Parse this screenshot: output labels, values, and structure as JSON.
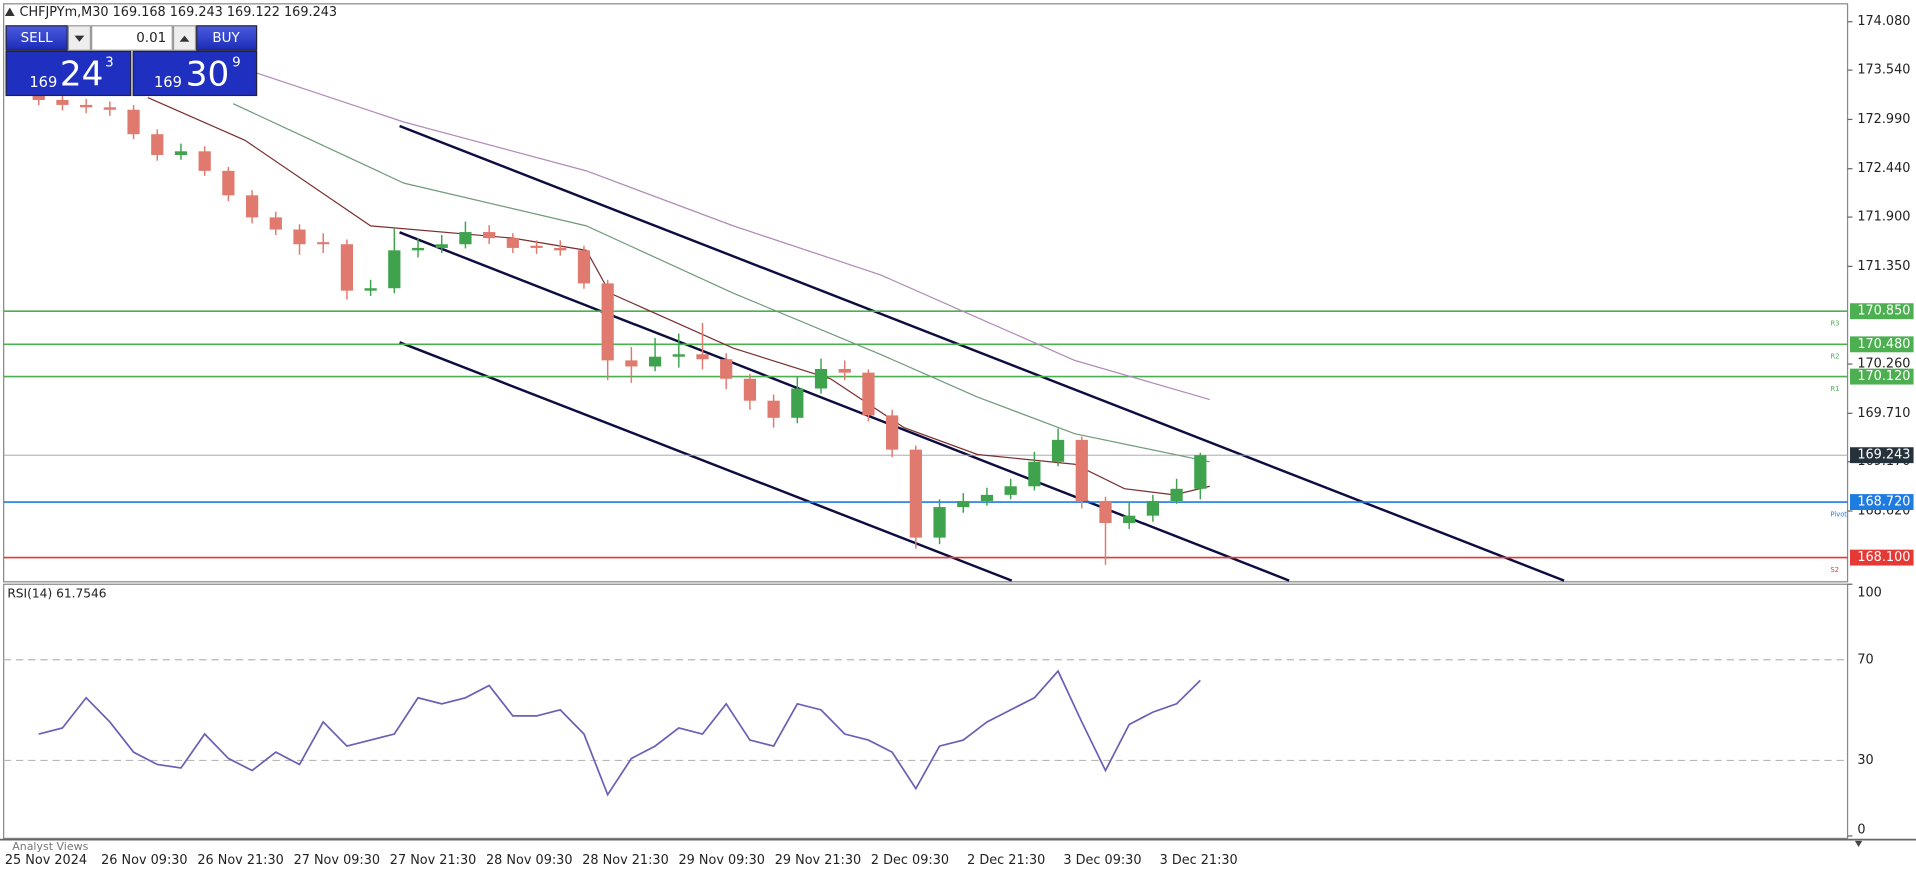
{
  "symbol_header": "CHFJPYm,M30  169.168 169.243 169.122 169.243",
  "trade_panel": {
    "sell": "SELL",
    "buy": "BUY",
    "lot": "0.01",
    "bid_big": "169",
    "bid_pips": "24",
    "bid_frac": "3",
    "ask_big": "169",
    "ask_pips": "30",
    "ask_frac": "9"
  },
  "footer_tab": "Analyst Views",
  "chart_data": [
    {
      "type": "candlestick",
      "x_labels": [
        "25 Nov 2024",
        "26 Nov 09:30",
        "26 Nov 21:30",
        "27 Nov 09:30",
        "27 Nov 21:30",
        "28 Nov 09:30",
        "28 Nov 21:30",
        "29 Nov 09:30",
        "29 Nov 21:30",
        "2 Dec 09:30",
        "2 Dec 21:30",
        "3 Dec 09:30",
        "3 Dec 21:30"
      ],
      "open": [
        173.261,
        173.207,
        173.152,
        173.125,
        173.098,
        172.825,
        172.593,
        172.634,
        172.416,
        172.143,
        171.897,
        171.761,
        171.62,
        171.597,
        171.079,
        171.106,
        171.529,
        171.556,
        171.597,
        171.733,
        171.665,
        171.58,
        171.556,
        171.529,
        171.16,
        170.301,
        170.233,
        170.342,
        170.369,
        170.314,
        170.096,
        169.851,
        169.66,
        169.987,
        170.205,
        170.164,
        169.687,
        169.305,
        168.323,
        168.664,
        168.732,
        168.8,
        168.896,
        169.169,
        169.414,
        168.732,
        168.486,
        168.568,
        168.732,
        168.868
      ],
      "high": [
        173.33,
        173.27,
        173.22,
        173.19,
        173.15,
        172.88,
        172.72,
        172.69,
        172.46,
        172.2,
        171.96,
        171.82,
        171.72,
        171.65,
        171.2,
        171.77,
        171.66,
        171.7,
        171.85,
        171.81,
        171.72,
        171.64,
        171.64,
        171.58,
        171.2,
        170.45,
        170.55,
        170.6,
        170.72,
        170.38,
        170.15,
        169.92,
        170.12,
        170.32,
        170.3,
        170.2,
        169.75,
        169.35,
        168.75,
        168.82,
        168.88,
        168.98,
        169.28,
        169.54,
        169.45,
        168.78,
        168.72,
        168.8,
        168.98,
        169.27
      ],
      "low": [
        173.15,
        173.09,
        173.06,
        173.03,
        172.77,
        172.53,
        172.54,
        172.36,
        172.08,
        171.83,
        171.7,
        171.48,
        171.5,
        170.98,
        171.02,
        171.05,
        171.45,
        171.5,
        171.55,
        171.6,
        171.5,
        171.49,
        171.47,
        171.1,
        170.08,
        170.05,
        170.18,
        170.22,
        170.2,
        169.98,
        169.75,
        169.55,
        169.6,
        169.93,
        170.08,
        169.62,
        169.22,
        168.2,
        168.25,
        168.6,
        168.68,
        168.75,
        168.85,
        169.12,
        168.65,
        168.02,
        168.42,
        168.5,
        168.7,
        168.75
      ],
      "close": [
        173.207,
        173.152,
        173.125,
        173.098,
        172.825,
        172.593,
        172.634,
        172.416,
        172.143,
        171.897,
        171.761,
        171.597,
        171.597,
        171.079,
        171.106,
        171.529,
        171.556,
        171.597,
        171.733,
        171.665,
        171.556,
        171.556,
        171.529,
        171.16,
        170.301,
        170.233,
        170.342,
        170.369,
        170.314,
        170.096,
        169.851,
        169.66,
        169.987,
        170.205,
        170.164,
        169.687,
        169.305,
        168.323,
        168.664,
        168.732,
        168.8,
        168.896,
        169.169,
        169.414,
        168.732,
        168.486,
        168.568,
        168.732,
        168.868,
        169.243
      ],
      "up_color": "#3fa34d",
      "down_color": "#e0796e",
      "series": [
        {
          "color": "#b08ab8",
          "x": [
            9.2,
            15.4,
            23.1,
            29.3,
            35.5,
            39.6,
            43.7,
            49.4
          ],
          "values": [
            173.507,
            172.961,
            172.416,
            171.802,
            171.256,
            170.778,
            170.301,
            169.864
          ]
        },
        {
          "color": "#6f9a7c",
          "x": [
            8.2,
            15.4,
            23.1,
            29.3,
            35.5,
            39.6,
            43.7,
            49.4
          ],
          "values": [
            173.166,
            172.279,
            171.802,
            171.051,
            170.369,
            169.892,
            169.483,
            169.169
          ]
        },
        {
          "color": "#7a2e2e",
          "x": [
            4.6,
            8.7,
            14.0,
            20.0,
            23.1,
            24.1,
            29.3,
            33.4,
            36.5,
            39.6,
            43.7,
            45.8,
            47.9,
            49.4
          ],
          "values": [
            173.234,
            172.757,
            171.802,
            171.665,
            171.529,
            171.051,
            170.437,
            170.096,
            169.551,
            169.251,
            169.142,
            168.869,
            168.8,
            168.896
          ]
        }
      ],
      "ylim": [
        167.83,
        174.28
      ],
      "yticks": [
        {
          "value": 174.08,
          "label": "174.080"
        },
        {
          "value": 173.54,
          "label": "173.540"
        },
        {
          "value": 172.99,
          "label": "172.990"
        },
        {
          "value": 172.44,
          "label": "172.440"
        },
        {
          "value": 171.9,
          "label": "171.900"
        },
        {
          "value": 171.35,
          "label": "171.350"
        },
        {
          "value": 170.26,
          "label": "170.260"
        },
        {
          "value": 169.71,
          "label": "169.710"
        },
        {
          "value": 169.17,
          "label": "169.170"
        },
        {
          "value": 168.62,
          "label": "168.620"
        }
      ],
      "levels": [
        {
          "name": "R3",
          "value": 170.85,
          "label": "170.850",
          "color": "#4caf50"
        },
        {
          "name": "R2",
          "value": 170.48,
          "label": "170.480",
          "color": "#4caf50"
        },
        {
          "name": "R1",
          "value": 170.12,
          "label": "170.120",
          "color": "#4caf50"
        },
        {
          "name": "Pivot",
          "value": 168.72,
          "label": "168.720",
          "color": "#1e7be0"
        },
        {
          "name": "S2",
          "value": 168.1,
          "label": "168.100",
          "color": "#e53935"
        }
      ],
      "current": {
        "value": 169.243,
        "label": "169.243",
        "color": "#26323b"
      }
    },
    {
      "type": "line",
      "title": "RSI(14) 61.7546",
      "color": "#6b5fb5",
      "values": [
        40.5,
        42.9,
        54.9,
        45.3,
        33.3,
        28.4,
        27,
        40.5,
        30.8,
        26,
        33.3,
        28.4,
        45.3,
        35.7,
        38.1,
        40.5,
        54.9,
        52.5,
        54.9,
        59.8,
        47.7,
        47.7,
        50.1,
        40.5,
        16.4,
        30.8,
        35.7,
        42.9,
        40.5,
        52.5,
        38.1,
        35.7,
        52.5,
        50.1,
        40.5,
        38.1,
        33.3,
        18.8,
        35.7,
        38.1,
        45.3,
        50.1,
        54.9,
        65.5,
        45.3,
        26,
        44.3,
        49.2,
        52.5,
        61.8
      ],
      "ylim": [
        0,
        100
      ],
      "yticks": [
        100,
        70,
        30,
        0
      ]
    }
  ]
}
